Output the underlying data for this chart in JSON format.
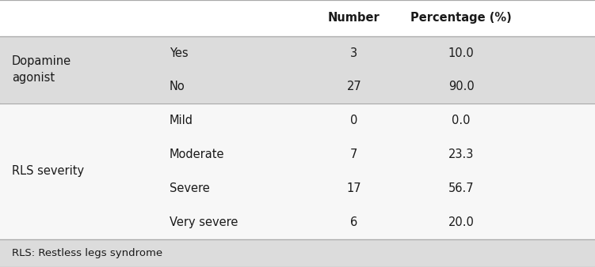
{
  "col_headers": [
    "",
    "",
    "Number",
    "Percentage (%)"
  ],
  "rows": [
    {
      "group": "Dopamine\nagonist",
      "subgroup": "Yes",
      "number": "3",
      "percentage": "10.0",
      "bg": "#DCDCDC"
    },
    {
      "group": "",
      "subgroup": "No",
      "number": "27",
      "percentage": "90.0",
      "bg": "#DCDCDC"
    },
    {
      "group": "RLS severity",
      "subgroup": "Mild",
      "number": "0",
      "percentage": "0.0",
      "bg": "#F7F7F7"
    },
    {
      "group": "",
      "subgroup": "Moderate",
      "number": "7",
      "percentage": "23.3",
      "bg": "#F7F7F7"
    },
    {
      "group": "",
      "subgroup": "Severe",
      "number": "17",
      "percentage": "56.7",
      "bg": "#F7F7F7"
    },
    {
      "group": "",
      "subgroup": "Very severe",
      "number": "6",
      "percentage": "20.0",
      "bg": "#F7F7F7"
    }
  ],
  "footer": "RLS: Restless legs syndrome",
  "bg_header": "#FFFFFF",
  "bg_footer": "#DCDCDC",
  "text_color": "#1a1a1a",
  "header_fontsize": 10.5,
  "body_fontsize": 10.5,
  "footer_fontsize": 9.5,
  "figsize": [
    7.51,
    3.38
  ],
  "dpi": 100
}
